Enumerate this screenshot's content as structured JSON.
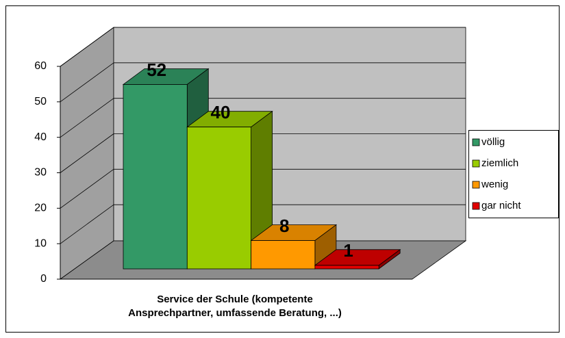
{
  "chart_data": {
    "type": "bar3d",
    "categories": [
      "Service der Schule (kompetente Ansprechpartner, umfassende Beratung, ...)"
    ],
    "series": [
      {
        "name": "völlig",
        "color": "#339966",
        "values": [
          52
        ]
      },
      {
        "name": "ziemlich",
        "color": "#99cc00",
        "values": [
          40
        ]
      },
      {
        "name": "wenig",
        "color": "#ff9900",
        "values": [
          8
        ]
      },
      {
        "name": "gar nicht",
        "color": "#e00000",
        "values": [
          1
        ]
      }
    ],
    "ylim": [
      0,
      60
    ],
    "yticks": [
      0,
      10,
      20,
      30,
      40,
      50,
      60
    ],
    "grid": true,
    "legend": "right"
  }
}
